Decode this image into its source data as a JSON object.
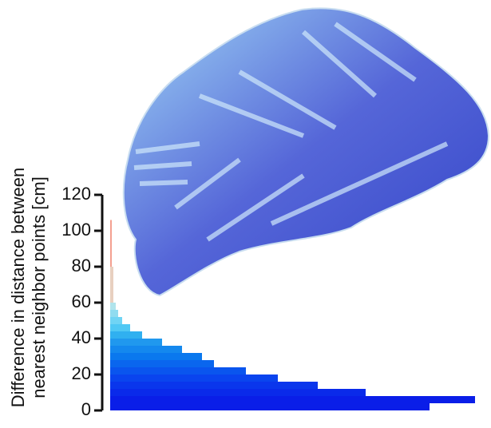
{
  "chart_data": {
    "type": "histogram",
    "orientation": "horizontal",
    "y_label_lines": [
      "Difference in distance between",
      "nearest neighbor points [cm]"
    ],
    "bins": [
      0,
      4,
      8,
      12,
      16,
      20,
      24,
      28,
      32,
      36,
      40,
      44,
      48,
      52,
      56,
      60,
      80,
      106
    ],
    "values": [
      400,
      457,
      320,
      260,
      210,
      170,
      130,
      115,
      90,
      65,
      40,
      25,
      15,
      10,
      7,
      4,
      2
    ],
    "colors": [
      "#0a1ee8",
      "#0a1ee8",
      "#0a2aea",
      "#0a36ec",
      "#0a44ee",
      "#0a55ee",
      "#0a66ee",
      "#0a78ee",
      "#1488ee",
      "#2098ee",
      "#30b0f0",
      "#50c8f4",
      "#70d4f4",
      "#90dcf0",
      "#b0e4ec",
      "#e8d0c0",
      "#f4a090"
    ],
    "ylim": [
      0,
      120
    ],
    "yticks": [
      0,
      20,
      40,
      60,
      80,
      100,
      120
    ]
  }
}
